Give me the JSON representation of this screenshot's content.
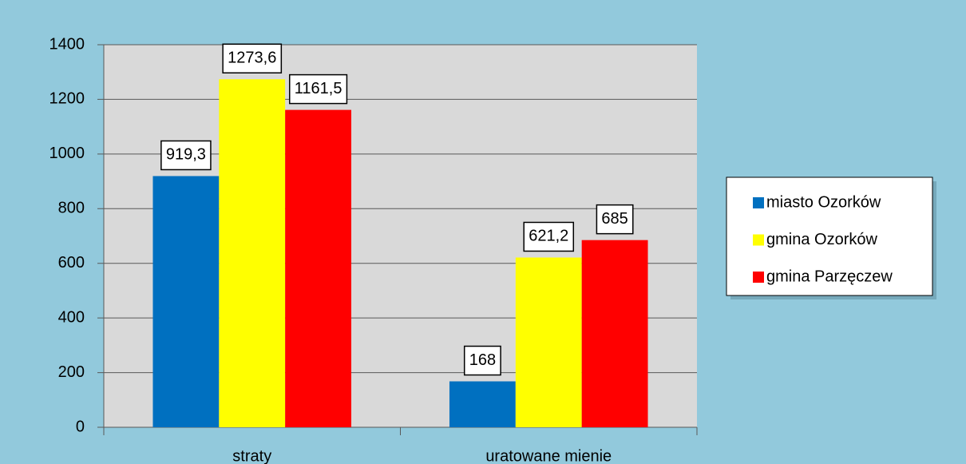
{
  "chart_data": {
    "type": "bar",
    "categories": [
      "straty",
      "uratowane mienie"
    ],
    "series": [
      {
        "name": "miasto Ozorków",
        "color": "#0070c0",
        "values": [
          919.3,
          168
        ],
        "value_labels": [
          "919,3",
          "168"
        ]
      },
      {
        "name": "gmina Ozorków",
        "color": "#ffff00",
        "values": [
          1273.6,
          621.2
        ],
        "value_labels": [
          "1273,6",
          "621,2"
        ]
      },
      {
        "name": "gmina Parzęczew",
        "color": "#ff0000",
        "values": [
          1161.5,
          685
        ],
        "value_labels": [
          "1161,5",
          "685"
        ]
      }
    ],
    "ylim": [
      0,
      1400
    ],
    "yticks": [
      0,
      200,
      400,
      600,
      800,
      1000,
      1200,
      1400
    ],
    "grid": true,
    "legend": "right"
  }
}
